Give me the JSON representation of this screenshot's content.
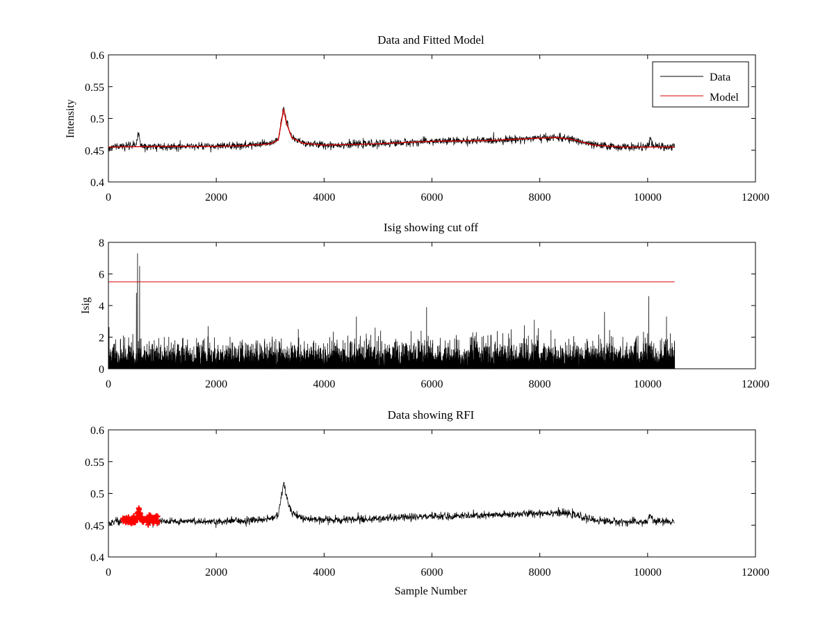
{
  "figure": {
    "background": "#ffffff",
    "colors": {
      "data": "#000000",
      "model": "#d40000",
      "rfi": "#ff0000",
      "cutoff": "#d40000",
      "axes": "#000000"
    }
  },
  "chart_data": [
    {
      "type": "line",
      "title": "Data and Fitted Model",
      "xlabel": "",
      "ylabel": "Intensity",
      "xlim": [
        0,
        12000
      ],
      "ylim": [
        0.4,
        0.6
      ],
      "xticks": [
        "0",
        "2000",
        "4000",
        "6000",
        "8000",
        "10000",
        "12000"
      ],
      "yticks": [
        "0.4",
        "0.45",
        "0.5",
        "0.55",
        "0.6"
      ],
      "legend": {
        "position": "top-right",
        "entries": [
          "Data",
          "Model"
        ]
      },
      "series": [
        {
          "name": "Data",
          "color": "#000000",
          "style": "noisy",
          "noise": 0.004,
          "x": [
            0,
            500,
            560,
            600,
            700,
            1000,
            1500,
            2000,
            2500,
            3000,
            3150,
            3250,
            3300,
            3400,
            3600,
            4000,
            5000,
            6000,
            7000,
            8000,
            8300,
            8600,
            9000,
            9500,
            10000,
            10050,
            10100,
            10500
          ],
          "y": [
            0.455,
            0.457,
            0.476,
            0.457,
            0.456,
            0.456,
            0.456,
            0.456,
            0.457,
            0.46,
            0.466,
            0.518,
            0.495,
            0.47,
            0.461,
            0.458,
            0.46,
            0.464,
            0.465,
            0.469,
            0.47,
            0.467,
            0.458,
            0.455,
            0.455,
            0.468,
            0.456,
            0.455
          ]
        },
        {
          "name": "Model",
          "color": "#d40000",
          "style": "line",
          "x": [
            0,
            1000,
            2000,
            2500,
            3000,
            3150,
            3250,
            3300,
            3400,
            3600,
            4000,
            5000,
            6000,
            7000,
            8000,
            8300,
            8600,
            9000,
            9500,
            10000,
            10500
          ],
          "y": [
            0.455,
            0.456,
            0.456,
            0.457,
            0.46,
            0.466,
            0.515,
            0.493,
            0.47,
            0.461,
            0.458,
            0.46,
            0.464,
            0.465,
            0.469,
            0.47,
            0.467,
            0.458,
            0.455,
            0.455,
            0.455
          ]
        }
      ]
    },
    {
      "type": "line",
      "title": "Isig showing cut off",
      "xlabel": "",
      "ylabel": "Isig",
      "xlim": [
        0,
        12000
      ],
      "ylim": [
        0,
        8
      ],
      "xticks": [
        "0",
        "2000",
        "4000",
        "6000",
        "8000",
        "10000",
        "12000"
      ],
      "yticks": [
        "0",
        "2",
        "4",
        "6",
        "8"
      ],
      "series": [
        {
          "name": "Isig",
          "color": "#000000",
          "style": "spiky",
          "base": 0.9,
          "spread": 1.3,
          "x_range": [
            0,
            10500
          ],
          "peaks": [
            {
              "x": 540,
              "y": 7.3
            },
            {
              "x": 580,
              "y": 6.5
            },
            {
              "x": 520,
              "y": 4.8
            },
            {
              "x": 1850,
              "y": 2.7
            },
            {
              "x": 4600,
              "y": 3.3
            },
            {
              "x": 5900,
              "y": 3.9
            },
            {
              "x": 7900,
              "y": 3.1
            },
            {
              "x": 9200,
              "y": 3.6
            },
            {
              "x": 10020,
              "y": 4.6
            },
            {
              "x": 10350,
              "y": 3.3
            }
          ]
        },
        {
          "name": "Cut off",
          "color": "#d40000",
          "style": "line",
          "x": [
            0,
            10500
          ],
          "y": [
            5.5,
            5.5
          ]
        }
      ]
    },
    {
      "type": "line",
      "title": "Data showing RFI",
      "xlabel": "Sample Number",
      "ylabel": "",
      "xlim": [
        0,
        12000
      ],
      "ylim": [
        0.4,
        0.6
      ],
      "xticks": [
        "0",
        "2000",
        "4000",
        "6000",
        "8000",
        "10000",
        "12000"
      ],
      "yticks": [
        "0.4",
        "0.45",
        "0.5",
        "0.55",
        "0.6"
      ],
      "series": [
        {
          "name": "Data",
          "color": "#000000",
          "style": "noisy",
          "noise": 0.004,
          "x": [
            0,
            500,
            560,
            600,
            700,
            1000,
            1500,
            2000,
            2500,
            3000,
            3150,
            3250,
            3300,
            3400,
            3600,
            4000,
            5000,
            6000,
            7000,
            8000,
            8300,
            8600,
            9000,
            9500,
            10000,
            10050,
            10100,
            10500
          ],
          "y": [
            0.455,
            0.457,
            0.476,
            0.457,
            0.456,
            0.456,
            0.456,
            0.456,
            0.457,
            0.46,
            0.466,
            0.518,
            0.495,
            0.47,
            0.461,
            0.458,
            0.46,
            0.464,
            0.465,
            0.469,
            0.47,
            0.467,
            0.458,
            0.455,
            0.455,
            0.468,
            0.456,
            0.455
          ]
        },
        {
          "name": "RFI",
          "color": "#ff0000",
          "style": "markers",
          "x_range": [
            270,
            920
          ],
          "center": 0.458,
          "spread": 0.006,
          "peaks": [
            {
              "x": 560,
              "y": 0.481
            }
          ]
        }
      ]
    }
  ]
}
